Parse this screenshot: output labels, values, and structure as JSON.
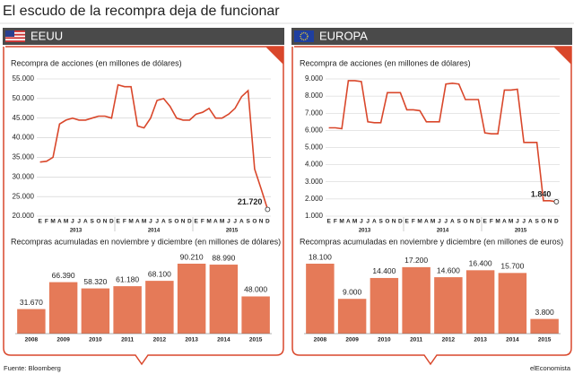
{
  "title": "El escudo de la recompra deja de funcionar",
  "source": "Fuente: Bloomberg",
  "credit": "elEconomista",
  "chart_data": [
    {
      "type": "line",
      "panel": "EEUU",
      "title": "Recompra de acciones (en millones de dólares)",
      "categories": [
        "E",
        "F",
        "M",
        "A",
        "M",
        "J",
        "J",
        "A",
        "S",
        "O",
        "N",
        "D",
        "E",
        "F",
        "M",
        "A",
        "M",
        "J",
        "J",
        "A",
        "S",
        "O",
        "N",
        "D",
        "E",
        "F",
        "M",
        "A",
        "M",
        "J",
        "J",
        "A",
        "S",
        "O",
        "N",
        "D"
      ],
      "groups": [
        "2013",
        "2014",
        "2015"
      ],
      "values": [
        33800,
        34000,
        35000,
        43500,
        44500,
        45000,
        44500,
        44500,
        45000,
        45500,
        45500,
        45000,
        53500,
        53000,
        53000,
        43000,
        42500,
        45000,
        49500,
        50000,
        48000,
        45000,
        44500,
        44500,
        46000,
        46500,
        47500,
        45000,
        45000,
        46000,
        47500,
        50500,
        52000,
        32000,
        27000,
        21720
      ],
      "value_labels": [
        null,
        null,
        null,
        null,
        null,
        null,
        null,
        null,
        null,
        null,
        null,
        null,
        null,
        null,
        null,
        null,
        null,
        null,
        null,
        null,
        null,
        null,
        null,
        null,
        null,
        null,
        null,
        null,
        null,
        null,
        null,
        null,
        null,
        null,
        null,
        "21.720"
      ],
      "color": "#d9472b",
      "ylim": [
        20000,
        55000
      ],
      "yticks": [
        {
          "value": 20000,
          "label": "20.000"
        },
        {
          "value": 25000,
          "label": "25.000"
        },
        {
          "value": 30000,
          "label": "30.000"
        },
        {
          "value": 35000,
          "label": "35.000"
        },
        {
          "value": 40000,
          "label": "40.000"
        },
        {
          "value": 45000,
          "label": "45.000"
        },
        {
          "value": 50000,
          "label": "50.000"
        },
        {
          "value": 55000,
          "label": "55.000"
        }
      ],
      "grid": true
    },
    {
      "type": "bar",
      "title": "Recompras acumuladas en noviembre y diciembre (en millones de dólares)",
      "categories": [
        "2008",
        "2009",
        "2010",
        "2011",
        "2012",
        "2013",
        "2014",
        "2015"
      ],
      "values": [
        31670,
        66390,
        58320,
        61180,
        68100,
        90210,
        88990,
        48000
      ],
      "value_labels": [
        "31.670",
        "66.390",
        "58.320",
        "61.180",
        "68.100",
        "90.210",
        "88.990",
        "48.000"
      ],
      "color": "#e57a58"
    },
    {
      "type": "line",
      "panel": "EUROPA",
      "title": "Recompra de acciones (en millones de dólares)",
      "categories": [
        "E",
        "F",
        "M",
        "A",
        "M",
        "J",
        "J",
        "A",
        "S",
        "O",
        "N",
        "D",
        "E",
        "F",
        "M",
        "A",
        "M",
        "J",
        "J",
        "A",
        "S",
        "O",
        "N",
        "D",
        "E",
        "F",
        "M",
        "A",
        "M",
        "J",
        "J",
        "A",
        "S",
        "O",
        "N",
        "D"
      ],
      "groups": [
        "2013",
        "2014",
        "2015"
      ],
      "values": [
        6150,
        6150,
        6100,
        8900,
        8900,
        8850,
        6500,
        6450,
        6450,
        8200,
        8200,
        8200,
        7200,
        7200,
        7150,
        6500,
        6500,
        6500,
        8700,
        8750,
        8700,
        7800,
        7800,
        7800,
        5850,
        5800,
        5800,
        8350,
        8350,
        8400,
        5300,
        5300,
        5300,
        1900,
        1900,
        1840
      ],
      "value_labels": [
        null,
        null,
        null,
        null,
        null,
        null,
        null,
        null,
        null,
        null,
        null,
        null,
        null,
        null,
        null,
        null,
        null,
        null,
        null,
        null,
        null,
        null,
        null,
        null,
        null,
        null,
        null,
        null,
        null,
        null,
        null,
        null,
        null,
        null,
        null,
        "1.840"
      ],
      "color": "#d9472b",
      "ylim": [
        1000,
        9000
      ],
      "yticks": [
        {
          "value": 1000,
          "label": "1.000"
        },
        {
          "value": 2000,
          "label": "2.000"
        },
        {
          "value": 3000,
          "label": "3.000"
        },
        {
          "value": 4000,
          "label": "4.000"
        },
        {
          "value": 5000,
          "label": "5.000"
        },
        {
          "value": 6000,
          "label": "6.000"
        },
        {
          "value": 7000,
          "label": "7.000"
        },
        {
          "value": 8000,
          "label": "8.000"
        },
        {
          "value": 9000,
          "label": "9.000"
        }
      ],
      "grid": true
    },
    {
      "type": "bar",
      "title": "Recompras acumuladas en noviembre y diciembre (en millones de euros)",
      "categories": [
        "2008",
        "2009",
        "2010",
        "2011",
        "2012",
        "2013",
        "2014",
        "2015"
      ],
      "values": [
        18100,
        9000,
        14400,
        17200,
        14600,
        16400,
        15700,
        3800
      ],
      "value_labels": [
        "18.100",
        "9.000",
        "14.400",
        "17.200",
        "14.600",
        "16.400",
        "15.700",
        "3.800"
      ],
      "color": "#e57a58"
    }
  ]
}
